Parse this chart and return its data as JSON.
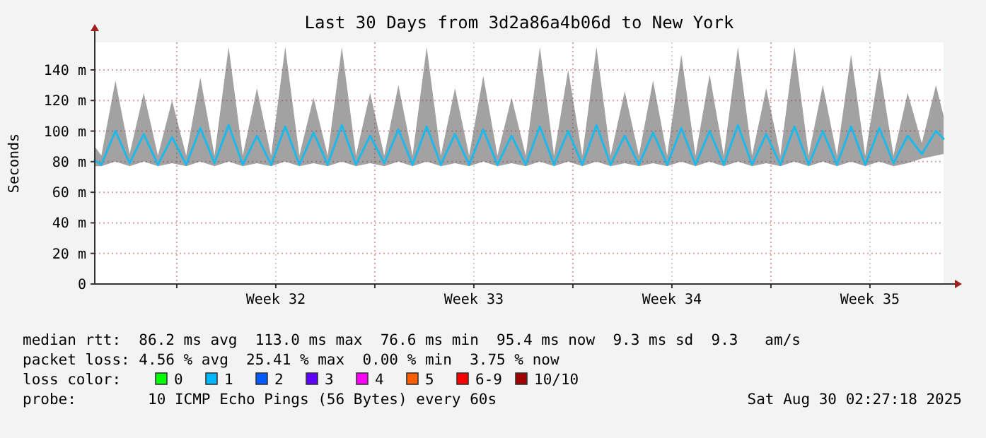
{
  "chart_data": {
    "type": "line",
    "title": "Last 30 Days from 3d2a86a4b06d to New York",
    "ylabel": "Seconds",
    "x": [
      "2025-07-31T02:27",
      "2025-07-31T08:00",
      "2025-07-31T20:00",
      "2025-08-01T08:00",
      "2025-08-01T20:00",
      "2025-08-02T08:00",
      "2025-08-02T20:00",
      "2025-08-03T08:00",
      "2025-08-03T20:00",
      "2025-08-04T08:00",
      "2025-08-04T20:00",
      "2025-08-05T08:00",
      "2025-08-05T20:00",
      "2025-08-06T08:00",
      "2025-08-06T20:00",
      "2025-08-07T08:00",
      "2025-08-07T20:00",
      "2025-08-08T08:00",
      "2025-08-08T20:00",
      "2025-08-09T08:00",
      "2025-08-09T20:00",
      "2025-08-10T08:00",
      "2025-08-10T20:00",
      "2025-08-11T08:00",
      "2025-08-11T20:00",
      "2025-08-12T08:00",
      "2025-08-12T20:00",
      "2025-08-13T08:00",
      "2025-08-13T20:00",
      "2025-08-14T08:00",
      "2025-08-14T20:00",
      "2025-08-15T08:00",
      "2025-08-15T20:00",
      "2025-08-16T08:00",
      "2025-08-16T20:00",
      "2025-08-17T08:00",
      "2025-08-17T20:00",
      "2025-08-18T08:00",
      "2025-08-18T20:00",
      "2025-08-19T08:00",
      "2025-08-19T20:00",
      "2025-08-20T08:00",
      "2025-08-20T20:00",
      "2025-08-21T08:00",
      "2025-08-21T20:00",
      "2025-08-22T08:00",
      "2025-08-22T20:00",
      "2025-08-23T08:00",
      "2025-08-23T20:00",
      "2025-08-24T08:00",
      "2025-08-24T20:00",
      "2025-08-25T08:00",
      "2025-08-25T20:00",
      "2025-08-26T08:00",
      "2025-08-26T20:00",
      "2025-08-27T08:00",
      "2025-08-27T20:00",
      "2025-08-28T08:00",
      "2025-08-28T20:00",
      "2025-08-29T08:00",
      "2025-08-29T20:00",
      "2025-08-30T02:27"
    ],
    "series": [
      {
        "color": "#1fb8ea",
        "values": [
          81,
          78,
          100,
          79,
          98,
          78,
          96,
          78,
          102,
          79,
          104,
          78,
          97,
          78,
          103,
          78,
          99,
          78,
          104,
          78,
          97,
          79,
          101,
          78,
          103,
          78,
          98,
          78,
          101,
          78,
          97,
          78,
          103,
          78,
          100,
          78,
          104,
          78,
          97,
          78,
          99,
          78,
          102,
          78,
          100,
          78,
          104,
          78,
          98,
          78,
          103,
          78,
          100,
          78,
          103,
          78,
          102,
          79,
          97,
          85,
          100,
          95
        ],
        "lower": [
          77,
          77,
          80,
          77,
          80,
          77,
          79,
          77,
          80,
          77,
          80,
          77,
          79,
          77,
          80,
          77,
          79,
          77,
          80,
          77,
          79,
          77,
          80,
          77,
          80,
          77,
          79,
          77,
          80,
          77,
          79,
          77,
          80,
          77,
          80,
          77,
          80,
          77,
          79,
          77,
          79,
          77,
          80,
          77,
          80,
          77,
          80,
          77,
          79,
          77,
          80,
          77,
          80,
          77,
          80,
          77,
          80,
          77,
          79,
          82,
          84,
          85
        ],
        "upper": [
          90,
          84,
          133,
          85,
          125,
          84,
          120,
          84,
          135,
          84,
          155,
          84,
          128,
          84,
          155,
          84,
          122,
          84,
          155,
          84,
          125,
          84,
          130,
          84,
          155,
          84,
          128,
          84,
          136,
          84,
          122,
          84,
          155,
          84,
          140,
          84,
          155,
          84,
          126,
          84,
          133,
          84,
          150,
          84,
          137,
          84,
          155,
          84,
          128,
          84,
          155,
          84,
          130,
          84,
          150,
          84,
          142,
          84,
          125,
          92,
          130,
          110
        ]
      }
    ],
    "xlim": [
      "2025-07-31T02:27",
      "2025-08-30T02:27"
    ],
    "xticks": [
      {
        "value": "2025-08-03",
        "label": null
      },
      {
        "value": "2025-08-06T12:00",
        "label": "Week 32"
      },
      {
        "value": "2025-08-10",
        "label": null
      },
      {
        "value": "2025-08-13T12:00",
        "label": "Week 33"
      },
      {
        "value": "2025-08-17",
        "label": null
      },
      {
        "value": "2025-08-20T12:00",
        "label": "Week 34"
      },
      {
        "value": "2025-08-24",
        "label": null
      },
      {
        "value": "2025-08-27T12:00",
        "label": "Week 35"
      }
    ],
    "ylim": [
      0,
      158
    ],
    "yticks": [
      0,
      {
        "value": 20,
        "label": "20 m"
      },
      {
        "value": 40,
        "label": "40 m"
      },
      {
        "value": 60,
        "label": "60 m"
      },
      {
        "value": 80,
        "label": "80 m"
      },
      {
        "value": 100,
        "label": "100 m"
      },
      {
        "value": 120,
        "label": "120 m"
      },
      {
        "value": 140,
        "label": "140 m"
      }
    ],
    "grid": true,
    "marker": "none",
    "line_style": "solid",
    "annotations": [
      "median rtt:  86.2 ms avg  113.0 ms max  76.6 ms min  95.4 ms now  9.3 ms sd  9.3   am/s",
      "packet loss: 4.56 % avg  25.41 % max  0.00 % min  3.75 % now",
      "loss color:",
      "0",
      "1",
      "2",
      "3",
      "4",
      "5",
      "6-9",
      "10/10",
      "probe:        10 ICMP Echo Pings (56 Bytes) every 60s",
      "Sat Aug 30 02:27:18 2025"
    ]
  }
}
